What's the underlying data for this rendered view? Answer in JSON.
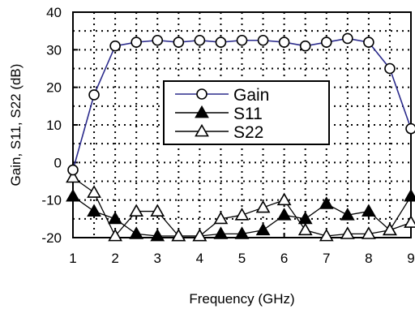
{
  "chart_data": {
    "type": "line",
    "title": "",
    "xlabel": "Frequency (GHz)",
    "ylabel": "Gain, S11, S22 (dB)",
    "xlim": [
      1,
      9
    ],
    "ylim": [
      -20,
      40
    ],
    "xticks": [
      "1",
      "2",
      "3",
      "4",
      "5",
      "6",
      "7",
      "8",
      "9"
    ],
    "yticks": [
      "40",
      "30",
      "20",
      "10",
      "0",
      "-10",
      "-20"
    ],
    "grid": "dotted",
    "legend_position": "center",
    "x": [
      1,
      1.5,
      2,
      2.5,
      3,
      3.5,
      4,
      4.5,
      5,
      5.5,
      6,
      6.5,
      7,
      7.5,
      8,
      8.5,
      9
    ],
    "series": [
      {
        "name": "Gain",
        "marker": "open-circle",
        "line_color": "#2b2b8c",
        "values": [
          -2,
          18,
          31,
          32,
          32.5,
          32,
          32.5,
          32,
          32.5,
          32.5,
          32,
          31,
          32,
          33,
          32,
          25,
          9
        ]
      },
      {
        "name": "S11",
        "marker": "filled-triangle",
        "line_color": "#000000",
        "values": [
          -9,
          -13,
          -15,
          -19,
          -21,
          -21,
          -21,
          -19,
          -19,
          -18,
          -14,
          -15,
          -11,
          -14,
          -13,
          -18,
          -9
        ]
      },
      {
        "name": "S22",
        "marker": "open-triangle",
        "line_color": "#000000",
        "values": [
          -4,
          -8,
          -21,
          -13,
          -13,
          -21,
          -21,
          -15,
          -14,
          -12,
          -10,
          -18,
          -21,
          -19,
          -19,
          -18,
          -16
        ]
      }
    ]
  }
}
